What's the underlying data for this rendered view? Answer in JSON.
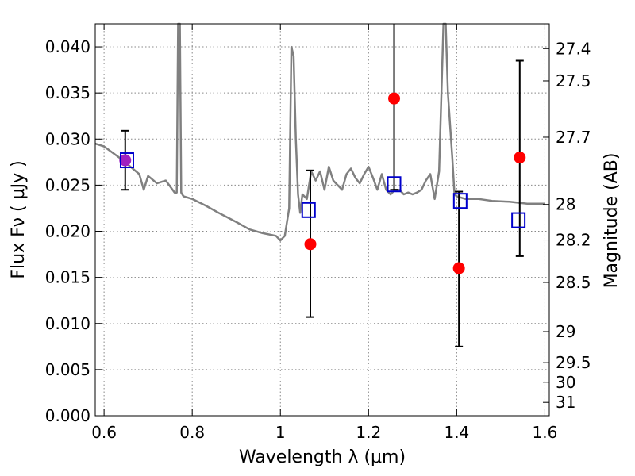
{
  "chart_data": {
    "type": "scatter",
    "title": "",
    "xlabel": "Wavelength  λ (μm)",
    "ylabel": "Flux  Fν  ( μJy )",
    "y2label": "Magnitude (AB)",
    "xlim": [
      0.58,
      1.61
    ],
    "ylim": [
      0.0,
      0.0425
    ],
    "grid": true,
    "x_ticks": [
      0.6,
      0.8,
      1.0,
      1.2,
      1.4,
      1.6
    ],
    "x_tick_labels": [
      "0.6",
      "0.8",
      "1",
      "1.2",
      "1.4",
      "1.6"
    ],
    "y_ticks": [
      0.0,
      0.005,
      0.01,
      0.015,
      0.02,
      0.025,
      0.03,
      0.035,
      0.04
    ],
    "y_tick_labels": [
      "0.000",
      "0.005",
      "0.010",
      "0.015",
      "0.020",
      "0.025",
      "0.030",
      "0.035",
      "0.040"
    ],
    "y2_ticks": [
      27.4,
      27.5,
      27.7,
      28,
      28.2,
      28.5,
      29,
      29.5,
      30,
      31
    ],
    "y2_tick_labels": [
      "27.4",
      "27.5",
      "27.7",
      "28",
      "28.2",
      "28.5",
      "29",
      "29.5",
      "30",
      "31"
    ],
    "colors": {
      "spectrum": "#808080",
      "observed": "#ff0000",
      "model_box": "#0000cc",
      "overlap": "#a020c0",
      "errorbar": "#000000",
      "grid": "#888888"
    },
    "spectrum": {
      "x": [
        0.58,
        0.6,
        0.62,
        0.64,
        0.66,
        0.68,
        0.69,
        0.7,
        0.72,
        0.74,
        0.76,
        0.765,
        0.768,
        0.772,
        0.775,
        0.78,
        0.8,
        0.83,
        0.86,
        0.9,
        0.93,
        0.96,
        0.99,
        1.0,
        1.01,
        1.02,
        1.025,
        1.03,
        1.035,
        1.04,
        1.045,
        1.05,
        1.06,
        1.07,
        1.08,
        1.09,
        1.1,
        1.11,
        1.12,
        1.13,
        1.14,
        1.15,
        1.16,
        1.17,
        1.18,
        1.19,
        1.2,
        1.21,
        1.22,
        1.23,
        1.24,
        1.25,
        1.26,
        1.27,
        1.28,
        1.29,
        1.3,
        1.31,
        1.32,
        1.33,
        1.34,
        1.35,
        1.36,
        1.37,
        1.375,
        1.38,
        1.39,
        1.395,
        1.4,
        1.42,
        1.45,
        1.48,
        1.52,
        1.56,
        1.6
      ],
      "y": [
        0.0295,
        0.0292,
        0.0285,
        0.0278,
        0.027,
        0.0262,
        0.0245,
        0.026,
        0.0252,
        0.0255,
        0.0242,
        0.0242,
        0.0425,
        0.0425,
        0.0242,
        0.0238,
        0.0235,
        0.0228,
        0.022,
        0.021,
        0.0202,
        0.0198,
        0.0195,
        0.019,
        0.0195,
        0.0225,
        0.04,
        0.039,
        0.03,
        0.024,
        0.022,
        0.024,
        0.0235,
        0.0265,
        0.0255,
        0.0265,
        0.0245,
        0.027,
        0.0255,
        0.025,
        0.0245,
        0.0262,
        0.0268,
        0.0258,
        0.0252,
        0.0262,
        0.027,
        0.0258,
        0.0245,
        0.0262,
        0.0245,
        0.024,
        0.0245,
        0.0245,
        0.024,
        0.0242,
        0.024,
        0.0242,
        0.0245,
        0.0255,
        0.0262,
        0.0235,
        0.0265,
        0.0425,
        0.0425,
        0.035,
        0.028,
        0.024,
        0.0238,
        0.0235,
        0.0235,
        0.0233,
        0.0232,
        0.023,
        0.023
      ]
    },
    "observed_points": [
      {
        "x": 0.648,
        "y": 0.0277,
        "yerr_low": 0.0245,
        "yerr_high": 0.0309
      },
      {
        "x": 1.068,
        "y": 0.0186,
        "yerr_low": 0.0107,
        "yerr_high": 0.0266
      },
      {
        "x": 1.258,
        "y": 0.0344,
        "yerr_low": 0.0245,
        "yerr_high": 0.0425
      },
      {
        "x": 1.405,
        "y": 0.016,
        "yerr_low": 0.0075,
        "yerr_high": 0.0243
      },
      {
        "x": 1.543,
        "y": 0.028,
        "yerr_low": 0.0173,
        "yerr_high": 0.0385
      }
    ],
    "model_points": [
      {
        "x": 0.652,
        "y": 0.0277
      },
      {
        "x": 1.064,
        "y": 0.0223
      },
      {
        "x": 1.258,
        "y": 0.0251
      },
      {
        "x": 1.408,
        "y": 0.0233
      },
      {
        "x": 1.54,
        "y": 0.0212
      }
    ]
  }
}
